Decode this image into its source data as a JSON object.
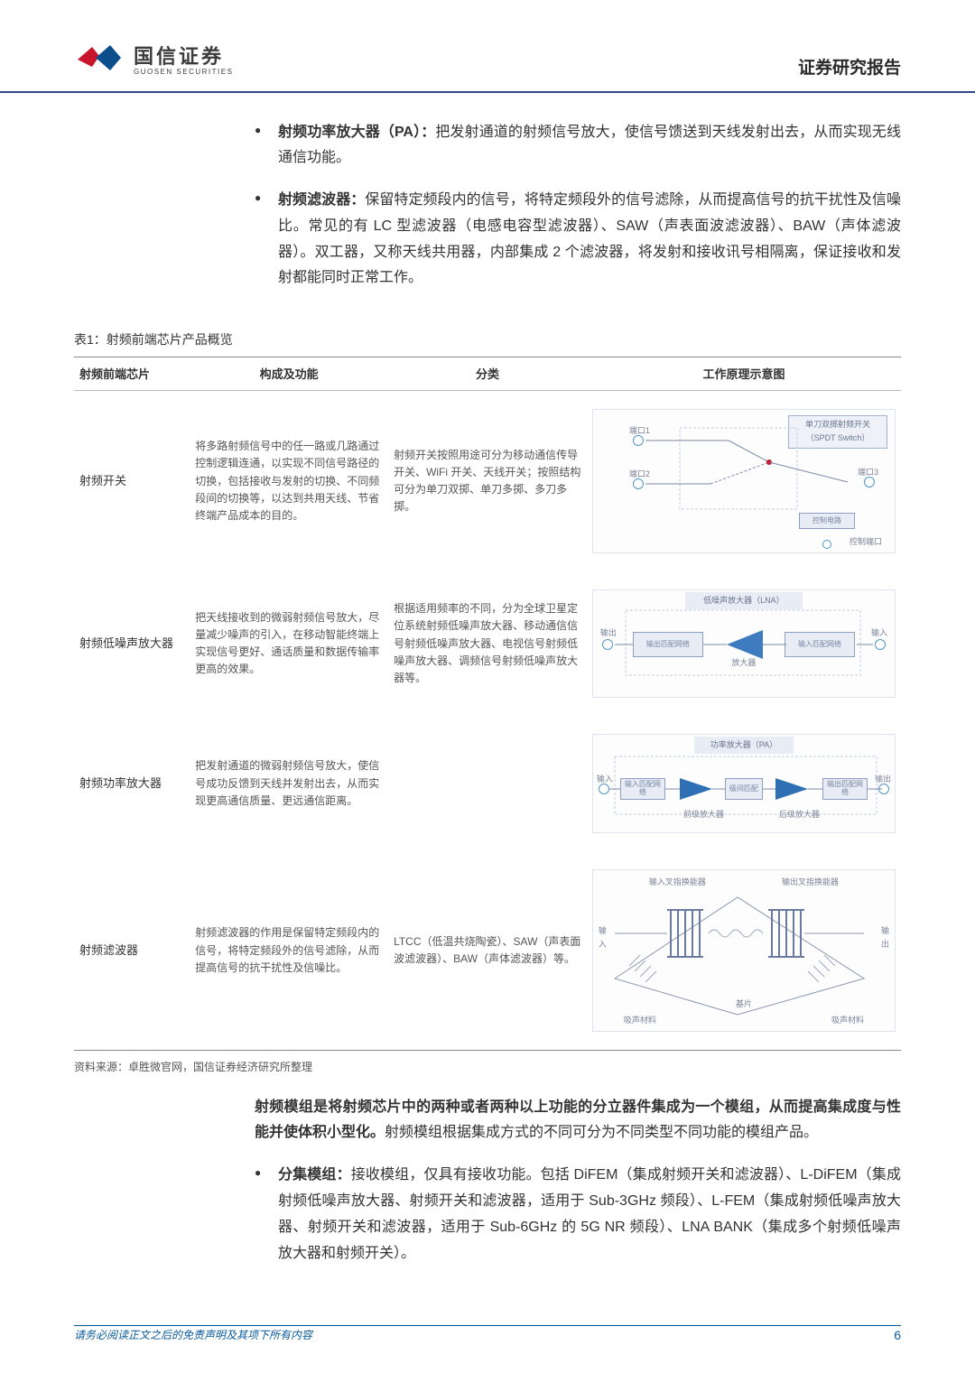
{
  "header": {
    "brand_cn": "国信证券",
    "brand_en": "GUOSEN SECURITIES",
    "report_type": "证券研究报告"
  },
  "bullets_top": [
    {
      "title": "射频功率放大器（PA）：",
      "body": "把发射通道的射频信号放大，使信号馈送到天线发射出去，从而实现无线通信功能。"
    },
    {
      "title": "射频滤波器：",
      "body": "保留特定频段内的信号，将特定频段外的信号滤除，从而提高信号的抗干扰性及信噪比。常见的有 LC 型滤波器（电感电容型滤波器）、SAW（声表面波滤波器）、BAW（声体滤波器）。双工器，又称天线共用器，内部集成 2 个滤波器，将发射和接收讯号相隔离，保证接收和发射都能同时正常工作。"
    }
  ],
  "table": {
    "title": "表1：射频前端芯片产品概览",
    "headers": [
      "射频前端芯片",
      "构成及功能",
      "分类",
      "工作原理示意图"
    ],
    "rows": [
      {
        "chip": "射频开关",
        "func": "将多路射频信号中的任一路或几路通过控制逻辑连通，以实现不同信号路径的切换，包括接收与发射的切换、不同频段间的切换等，以达到共用天线、节省终端产品成本的目的。",
        "cat": "射频开关按照用途可分为移动通信传导开关、WiFi 开关、天线开关；按照结构可分为单刀双掷、单刀多掷、多刀多掷。",
        "diagram": {
          "type": "switch",
          "title": "单刀双掷射频开关（SPDT Switch）",
          "port1": "端口1",
          "port2": "端口2",
          "port3": "端口3",
          "ctrl_circuit": "控制电路",
          "ctrl_port": "控制端口",
          "colors": {
            "border": "#9fb0d0",
            "bg": "#eef2f8",
            "port": "#4f97c9"
          }
        }
      },
      {
        "chip": "射频低噪声放大器",
        "func": "把天线接收到的微弱射频信号放大，尽量减少噪声的引入，在移动智能终端上实现信号更好、通话质量和数据传输率更高的效果。",
        "cat": "根据适用频率的不同，分为全球卫星定位系统射频低噪声放大器、移动通信信号射频低噪声放大器、电视信号射频低噪声放大器、调频信号射频低噪声放大器等。",
        "diagram": {
          "type": "lna",
          "title": "低噪声放大器（LNA）",
          "out": "输出",
          "in": "输入",
          "out_net": "输出匹配网络",
          "amp": "放大器",
          "in_net": "输入匹配网络",
          "colors": {
            "fill": "#3f7cbf"
          }
        }
      },
      {
        "chip": "射频功率放大器",
        "func": "把发射通道的微弱射频信号放大，使信号成功反馈到天线并发射出去，从而实现更高通信质量、更远通信距离。",
        "cat": "",
        "diagram": {
          "type": "pa",
          "title": "功率放大器（PA）",
          "in": "输入",
          "out": "输出",
          "in_net": "输入匹配网络",
          "pre": "前级放大器",
          "mid": "级间匹配",
          "post": "后级放大器",
          "out_net": "输出匹配网络",
          "colors": {
            "fill": "#7aaad4"
          }
        }
      },
      {
        "chip": "射频滤波器",
        "func": "射频滤波器的作用是保留特定频段内的信号，将特定频段外的信号滤除，从而提高信号的抗干扰性及信噪比。",
        "cat": "LTCC（低温共烧陶瓷）、SAW（声表面波滤波器）、BAW（声体滤波器）等。",
        "diagram": {
          "type": "filter",
          "in_idc": "输入叉指换能器",
          "out_idc": "输出叉指换能器",
          "in": "输入",
          "out": "输出",
          "sub": "基片",
          "pm1": "吸声材料",
          "pm2": "吸声材料"
        }
      }
    ],
    "source": "资料来源：卓胜微官网，国信证券经济研究所整理"
  },
  "para1": {
    "bold": "射频模组是将射频芯片中的两种或者两种以上功能的分立器件集成为一个模组，从而提高集成度与性能并使体积小型化。",
    "rest": "射频模组根据集成方式的不同可分为不同类型不同功能的模组产品。"
  },
  "bullets_bottom": [
    {
      "title": "分集模组：",
      "body": "接收模组，仅具有接收功能。包括 DiFEM（集成射频开关和滤波器）、L-DiFEM（集成射频低噪声放大器、射频开关和滤波器，适用于 Sub-3GHz 频段）、L-FEM（集成射频低噪声放大器、射频开关和滤波器，适用于 Sub-6GHz 的 5G NR 频段）、LNA BANK（集成多个射频低噪声放大器和射频开关）。"
    }
  ],
  "footer": {
    "disclaimer": "请务必阅读正文之后的免责声明及其项下所有内容",
    "page": "6"
  }
}
